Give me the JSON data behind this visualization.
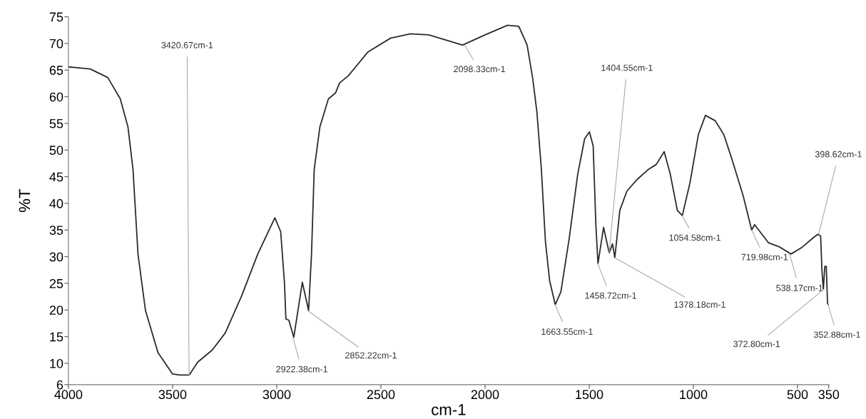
{
  "chart_data": {
    "type": "line",
    "xlabel": "cm-1",
    "ylabel": "%T",
    "xlim": [
      4000,
      350
    ],
    "ylim": [
      6,
      75
    ],
    "xticks": [
      4000,
      3500,
      3000,
      2500,
      2000,
      1500,
      1000,
      500,
      350
    ],
    "yticks": [
      6,
      10,
      15,
      20,
      25,
      30,
      35,
      40,
      45,
      50,
      55,
      60,
      65,
      70,
      75
    ],
    "grid": false,
    "marker": "none",
    "line_style": "solid",
    "series": [
      {
        "color": "#2b2b2b",
        "x": [
          4000,
          3895,
          3811,
          3751,
          3714,
          3690,
          3666,
          3630,
          3570,
          3500,
          3466,
          3420,
          3380,
          3309,
          3247,
          3169,
          3091,
          3009,
          2981,
          2963,
          2956,
          2942,
          2918,
          2877,
          2847,
          2833,
          2820,
          2793,
          2752,
          2718,
          2698,
          2657,
          2562,
          2453,
          2358,
          2270,
          2108,
          2000,
          1892,
          1838,
          1798,
          1771,
          1751,
          1730,
          1710,
          1690,
          1663,
          1636,
          1596,
          1555,
          1522,
          1499,
          1481,
          1468,
          1458,
          1431,
          1404,
          1388,
          1377,
          1353,
          1319,
          1272,
          1218,
          1178,
          1140,
          1111,
          1077,
          1053,
          1016,
          976,
          942,
          895,
          854,
          814,
          760,
          720,
          706,
          639,
          585,
          531,
          477,
          423,
          403,
          389,
          383,
          376,
          369,
          362,
          356,
          352
        ],
        "values": [
          65.6,
          65.2,
          63.6,
          59.6,
          54.3,
          46.4,
          30.5,
          19.9,
          12,
          8.0,
          7.8,
          7.8,
          10.2,
          12.5,
          15.7,
          22.6,
          30.5,
          37.3,
          34.7,
          25.2,
          18.3,
          18.1,
          14.9,
          25.2,
          19.9,
          30.5,
          46.4,
          54.3,
          59.6,
          60.7,
          62.6,
          63.9,
          68.4,
          71.0,
          71.8,
          71.6,
          69.7,
          71.6,
          73.4,
          73.2,
          69.7,
          63.4,
          57.1,
          46.6,
          32.8,
          25.5,
          21.0,
          23.4,
          33.4,
          45.5,
          52.1,
          53.4,
          50.8,
          36.0,
          28.7,
          35.5,
          30.7,
          32.4,
          29.8,
          38.7,
          42.3,
          44.4,
          46.3,
          47.3,
          49.7,
          45.5,
          38.7,
          37.7,
          43.9,
          52.9,
          56.5,
          55.5,
          52.9,
          48.2,
          41.3,
          35.0,
          36.0,
          32.6,
          31.8,
          30.5,
          31.8,
          33.6,
          34.2,
          33.9,
          27.6,
          23.9,
          28.2,
          28.2,
          21.3,
          21.0
        ]
      }
    ],
    "annotations": [
      {
        "text": "3420.67cm-1",
        "x": 3420.67,
        "y": 7.8
      },
      {
        "text": "2922.38cm-1",
        "x": 2922.38,
        "y": 14.9
      },
      {
        "text": "2852.22cm-1",
        "x": 2852.22,
        "y": 19.9
      },
      {
        "text": "2098.33cm-1",
        "x": 2098.33,
        "y": 69.7
      },
      {
        "text": "1663.55cm-1",
        "x": 1663.55,
        "y": 21.0
      },
      {
        "text": "1458.72cm-1",
        "x": 1458.72,
        "y": 28.7
      },
      {
        "text": "1404.55cm-1",
        "x": 1404.55,
        "y": 30.7
      },
      {
        "text": "1378.18cm-1",
        "x": 1378.18,
        "y": 29.8
      },
      {
        "text": "1054.58cm-1",
        "x": 1054.58,
        "y": 37.7
      },
      {
        "text": "719.98cm-1",
        "x": 719.98,
        "y": 35.0
      },
      {
        "text": "538.17cm-1",
        "x": 538.17,
        "y": 30.5
      },
      {
        "text": "398.62cm-1",
        "x": 398.62,
        "y": 34.2
      },
      {
        "text": "372.80cm-1",
        "x": 372.8,
        "y": 23.9
      },
      {
        "text": "352.88cm-1",
        "x": 352.88,
        "y": 21.0
      }
    ]
  }
}
